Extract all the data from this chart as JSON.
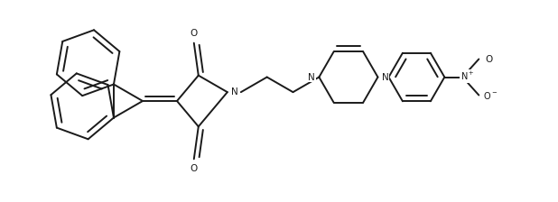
{
  "bg_color": "#ffffff",
  "line_color": "#1a1a1a",
  "lw": 1.4,
  "figsize": [
    6.18,
    2.24
  ],
  "dpi": 100,
  "xlim": [
    0,
    6.18
  ],
  "ylim": [
    0,
    2.24
  ]
}
